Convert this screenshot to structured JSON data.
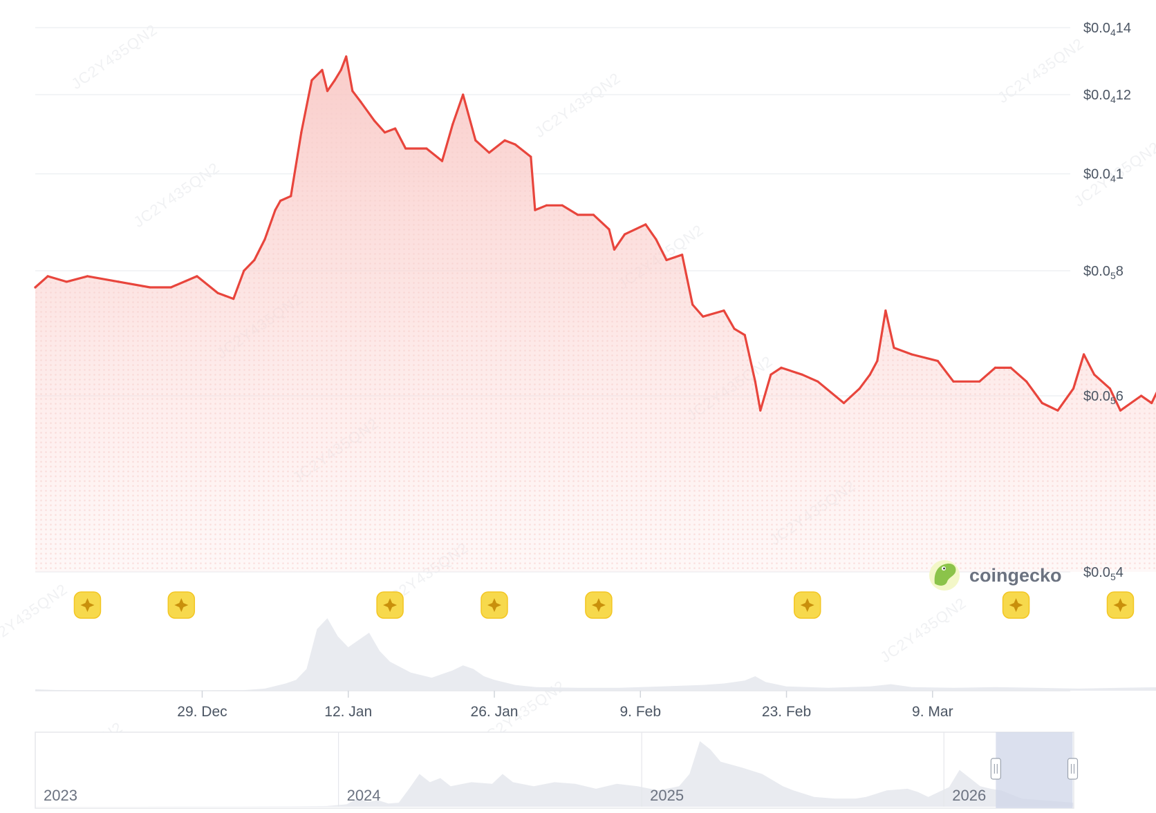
{
  "watermark": "JC2Y435QN2",
  "brand": {
    "name": "coingecko",
    "icon": "gecko-icon"
  },
  "colors": {
    "line": "#e8453c",
    "area": "#fde2e1",
    "grid": "#eef0f3",
    "volume": "#e9ebf0",
    "navigator_mask": "#cfd6e8",
    "event_marker": "#f7d94c"
  },
  "chart_data": {
    "type": "line",
    "series": [
      {
        "values": [
          [
            0,
            7.7e-06
          ],
          [
            1.2,
            7.9e-06
          ],
          [
            3,
            7.8e-06
          ],
          [
            5,
            7.9e-06
          ],
          [
            8,
            7.8e-06
          ],
          [
            11,
            7.7e-06
          ],
          [
            13,
            7.7e-06
          ],
          [
            15.5,
            7.9e-06
          ],
          [
            17.5,
            7.6e-06
          ],
          [
            19,
            7.5e-06
          ],
          [
            20,
            8e-06
          ],
          [
            21,
            8.2e-06
          ],
          [
            22,
            8.6e-06
          ],
          [
            23,
            9.2e-06
          ],
          [
            23.5,
            9.4e-06
          ],
          [
            24.5,
            9.5e-06
          ],
          [
            25.5,
            1.1e-05
          ],
          [
            26.5,
            1.24e-05
          ],
          [
            27.5,
            1.27e-05
          ],
          [
            28,
            1.21e-05
          ],
          [
            28.7,
            1.24e-05
          ],
          [
            29.3,
            1.27e-05
          ],
          [
            29.8,
            1.31e-05
          ],
          [
            30.4,
            1.21e-05
          ],
          [
            31.2,
            1.18e-05
          ],
          [
            32.5,
            1.13e-05
          ],
          [
            33.5,
            1.1e-05
          ],
          [
            34.5,
            1.11e-05
          ],
          [
            35.5,
            1.06e-05
          ],
          [
            37.5,
            1.06e-05
          ],
          [
            39,
            1.03e-05
          ],
          [
            40,
            1.12e-05
          ],
          [
            41,
            1.2e-05
          ],
          [
            42.2,
            1.08e-05
          ],
          [
            43.5,
            1.05e-05
          ],
          [
            45,
            1.08e-05
          ],
          [
            46,
            1.07e-05
          ],
          [
            47.5,
            1.04e-05
          ],
          [
            47.9,
            9.2e-06
          ],
          [
            49,
            9.3e-06
          ],
          [
            50.5,
            9.3e-06
          ],
          [
            52,
            9.1e-06
          ],
          [
            53.5,
            9.1e-06
          ],
          [
            55,
            8.8e-06
          ],
          [
            55.5,
            8.4e-06
          ],
          [
            56.5,
            8.7e-06
          ],
          [
            58.5,
            8.9e-06
          ],
          [
            59.5,
            8.6e-06
          ],
          [
            60.5,
            8.2e-06
          ],
          [
            62,
            8.3e-06
          ],
          [
            63,
            7.4e-06
          ],
          [
            64,
            7.2e-06
          ],
          [
            66,
            7.3e-06
          ],
          [
            67,
            7e-06
          ],
          [
            68,
            6.9e-06
          ],
          [
            69,
            6.2e-06
          ],
          [
            69.5,
            5.8e-06
          ],
          [
            70.5,
            6.3e-06
          ],
          [
            71.5,
            6.4e-06
          ],
          [
            73.5,
            6.3e-06
          ],
          [
            75,
            6.2e-06
          ],
          [
            77.5,
            5.9e-06
          ],
          [
            79,
            6.1e-06
          ],
          [
            80,
            6.3e-06
          ],
          [
            80.7,
            6.5e-06
          ],
          [
            81.5,
            7.3e-06
          ],
          [
            82.3,
            6.7e-06
          ],
          [
            84,
            6.6e-06
          ],
          [
            86.5,
            6.5e-06
          ],
          [
            88,
            6.2e-06
          ],
          [
            90.5,
            6.2e-06
          ],
          [
            92,
            6.4e-06
          ],
          [
            93.5,
            6.4e-06
          ],
          [
            95,
            6.2e-06
          ],
          [
            96.5,
            5.9e-06
          ],
          [
            98,
            5.8e-06
          ],
          [
            99.5,
            6.1e-06
          ],
          [
            100.5,
            6.6e-06
          ],
          [
            101.5,
            6.3e-06
          ],
          [
            103,
            6.1e-06
          ],
          [
            104,
            5.8e-06
          ],
          [
            106,
            6e-06
          ],
          [
            107,
            5.9e-06
          ],
          [
            108,
            6.2e-06
          ],
          [
            109,
            6.4e-06
          ],
          [
            110.5,
            6.2e-06
          ],
          [
            111.5,
            5.9e-06
          ],
          [
            113,
            5.8e-06
          ],
          [
            114.5,
            5.7e-06
          ],
          [
            115.5,
            5.9e-06
          ],
          [
            117,
            6e-06
          ],
          [
            118.5,
            6e-06
          ],
          [
            119.5,
            6.2e-06
          ],
          [
            121,
            6.2e-06
          ],
          [
            122,
            6.5e-06
          ],
          [
            123,
            6e-06
          ],
          [
            125,
            5.9e-06
          ],
          [
            126,
            6.2e-06
          ],
          [
            127,
            6.8e-06
          ],
          [
            128,
            6.5e-06
          ],
          [
            128.7,
            6.7e-06
          ],
          [
            129.5,
            6.9e-06
          ],
          [
            129.8,
            6.7e-06
          ]
        ]
      }
    ],
    "x_range": [
      "2025-12-13",
      "2026-03-22"
    ],
    "xticks": [
      "29. Dec",
      "12. Jan",
      "26. Jan",
      "9. Feb",
      "23. Feb",
      "9. Mar"
    ],
    "yaxis": {
      "scale": "log",
      "range": [
        4e-06,
        1.4e-05
      ]
    },
    "yticks": [
      {
        "main": "$0.0",
        "sub": "4",
        "rest": "14",
        "value": 1.4e-05
      },
      {
        "main": "$0.0",
        "sub": "4",
        "rest": "12",
        "value": 1.2e-05
      },
      {
        "main": "$0.0",
        "sub": "4",
        "rest": "1",
        "value": 1e-05
      },
      {
        "main": "$0.0",
        "sub": "5",
        "rest": "8",
        "value": 8e-06
      },
      {
        "main": "$0.0",
        "sub": "5",
        "rest": "6",
        "value": 6e-06
      },
      {
        "main": "$0.0",
        "sub": "5",
        "rest": "4",
        "value": 4e-06
      }
    ],
    "grid": true,
    "legend": "none",
    "volume": [
      [
        0,
        2
      ],
      [
        2,
        1
      ],
      [
        4,
        0.8
      ],
      [
        8,
        0.7
      ],
      [
        12,
        0.6
      ],
      [
        16,
        0.6
      ],
      [
        20,
        0.9
      ],
      [
        22,
        3
      ],
      [
        24,
        10
      ],
      [
        25,
        15
      ],
      [
        26,
        30
      ],
      [
        27,
        85
      ],
      [
        28,
        100
      ],
      [
        29,
        75
      ],
      [
        30,
        60
      ],
      [
        31,
        70
      ],
      [
        32,
        80
      ],
      [
        33,
        55
      ],
      [
        34,
        40
      ],
      [
        36,
        25
      ],
      [
        38,
        18
      ],
      [
        40,
        28
      ],
      [
        41,
        35
      ],
      [
        42,
        30
      ],
      [
        43,
        20
      ],
      [
        44,
        15
      ],
      [
        46,
        8
      ],
      [
        48,
        5
      ],
      [
        52,
        4
      ],
      [
        56,
        4
      ],
      [
        60,
        6
      ],
      [
        64,
        8
      ],
      [
        66,
        10
      ],
      [
        68,
        14
      ],
      [
        69,
        20
      ],
      [
        70,
        12
      ],
      [
        72,
        6
      ],
      [
        76,
        4
      ],
      [
        80,
        6
      ],
      [
        82,
        9
      ],
      [
        84,
        5
      ],
      [
        88,
        4
      ],
      [
        92,
        5
      ],
      [
        96,
        4
      ],
      [
        100,
        3
      ],
      [
        104,
        4
      ],
      [
        108,
        5
      ],
      [
        110,
        6
      ],
      [
        112,
        4
      ],
      [
        116,
        3
      ],
      [
        120,
        4
      ],
      [
        124,
        5
      ],
      [
        126,
        7
      ],
      [
        127,
        9
      ],
      [
        128,
        11
      ],
      [
        129,
        8
      ],
      [
        129.8,
        6
      ]
    ],
    "events": [
      5,
      14,
      34,
      44,
      54,
      74,
      94,
      104
    ],
    "navigator": {
      "years": [
        "2023",
        "2024",
        "2025",
        "2026"
      ],
      "window": [
        0.925,
        0.999
      ],
      "volume": [
        [
          0,
          0.2
        ],
        [
          0.05,
          0.25
        ],
        [
          0.1,
          0.2
        ],
        [
          0.15,
          0.3
        ],
        [
          0.2,
          0.3
        ],
        [
          0.25,
          0.5
        ],
        [
          0.28,
          0.8
        ],
        [
          0.3,
          3
        ],
        [
          0.31,
          10
        ],
        [
          0.32,
          6
        ],
        [
          0.33,
          8
        ],
        [
          0.34,
          4
        ],
        [
          0.35,
          5
        ],
        [
          0.36,
          22
        ],
        [
          0.37,
          40
        ],
        [
          0.38,
          30
        ],
        [
          0.39,
          35
        ],
        [
          0.4,
          25
        ],
        [
          0.42,
          30
        ],
        [
          0.44,
          28
        ],
        [
          0.45,
          40
        ],
        [
          0.46,
          30
        ],
        [
          0.48,
          25
        ],
        [
          0.5,
          30
        ],
        [
          0.52,
          28
        ],
        [
          0.54,
          22
        ],
        [
          0.56,
          28
        ],
        [
          0.58,
          25
        ],
        [
          0.6,
          20
        ],
        [
          0.62,
          25
        ],
        [
          0.63,
          40
        ],
        [
          0.64,
          80
        ],
        [
          0.65,
          70
        ],
        [
          0.66,
          55
        ],
        [
          0.68,
          48
        ],
        [
          0.7,
          40
        ],
        [
          0.72,
          25
        ],
        [
          0.73,
          20
        ],
        [
          0.75,
          12
        ],
        [
          0.77,
          10
        ],
        [
          0.79,
          10
        ],
        [
          0.8,
          12
        ],
        [
          0.82,
          20
        ],
        [
          0.84,
          22
        ],
        [
          0.85,
          18
        ],
        [
          0.86,
          12
        ],
        [
          0.87,
          18
        ],
        [
          0.88,
          24
        ],
        [
          0.89,
          45
        ],
        [
          0.9,
          35
        ],
        [
          0.91,
          25
        ],
        [
          0.92,
          22
        ],
        [
          0.93,
          20
        ],
        [
          0.94,
          15
        ],
        [
          0.95,
          10
        ],
        [
          0.97,
          8
        ],
        [
          0.99,
          6
        ],
        [
          1.0,
          5
        ]
      ]
    }
  }
}
